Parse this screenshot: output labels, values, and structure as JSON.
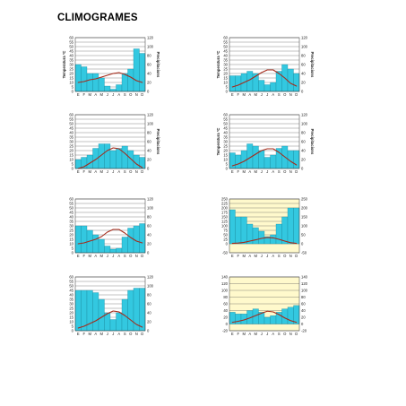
{
  "page": {
    "title": "CLIMOGRAMES"
  },
  "colors": {
    "bar_fill": "#33c8e0",
    "bar_stroke": "#1a7f93",
    "temp_line": "#a52a1a",
    "grid": "#555555",
    "panel_yellow": "#fff9cc"
  },
  "chart_data": [
    {
      "type": "bar",
      "categories": [
        "E",
        "F",
        "M",
        "A",
        "M",
        "J",
        "J",
        "A",
        "S",
        "O",
        "N",
        "D"
      ],
      "ylabel": "Temperatura ºC",
      "y2label": "Precipitacions",
      "ylim": [
        0,
        60
      ],
      "yticks": [
        "0",
        "5",
        "10",
        "15",
        "20",
        "25",
        "30",
        "35",
        "40",
        "45",
        "50",
        "55",
        "60"
      ],
      "y2lim": [
        0,
        120
      ],
      "y2ticks": [
        "0",
        "20",
        "40",
        "60",
        "80",
        "100",
        "120"
      ],
      "grid": true,
      "yellow": false,
      "series": [
        {
          "kind": "precipitation",
          "values": [
            60,
            55,
            40,
            40,
            30,
            12,
            5,
            15,
            40,
            50,
            95,
            85
          ]
        },
        {
          "kind": "temperature",
          "values": [
            10,
            11,
            13,
            14,
            16,
            18,
            20,
            21,
            19,
            16,
            12,
            10
          ]
        }
      ]
    },
    {
      "type": "bar",
      "categories": [
        "E",
        "F",
        "M",
        "A",
        "M",
        "J",
        "J",
        "A",
        "S",
        "O",
        "N",
        "D"
      ],
      "ylabel": "Temperatura ºC",
      "y2label": "Precipitacions",
      "ylim": [
        0,
        60
      ],
      "yticks": [
        "0",
        "5",
        "10",
        "15",
        "20",
        "25",
        "30",
        "35",
        "40",
        "45",
        "50",
        "55",
        "60"
      ],
      "y2lim": [
        0,
        120
      ],
      "y2ticks": [
        "0",
        "20",
        "40",
        "60",
        "80",
        "100",
        "120"
      ],
      "grid": true,
      "yellow": false,
      "series": [
        {
          "kind": "precipitation",
          "values": [
            35,
            35,
            40,
            45,
            40,
            25,
            15,
            20,
            45,
            60,
            50,
            40
          ]
        },
        {
          "kind": "temperature",
          "values": [
            5,
            7,
            10,
            13,
            17,
            21,
            24,
            24,
            20,
            15,
            9,
            6
          ]
        }
      ]
    },
    {
      "type": "bar",
      "categories": [
        "E",
        "F",
        "M",
        "A",
        "M",
        "J",
        "J",
        "A",
        "S",
        "O",
        "N",
        "D"
      ],
      "ylabel": "",
      "y2label": "Precipitacions",
      "ylim": [
        0,
        60
      ],
      "yticks": [
        "0",
        "5",
        "10",
        "15",
        "20",
        "25",
        "30",
        "35",
        "40",
        "45",
        "50",
        "55",
        "60"
      ],
      "y2lim": [
        0,
        120
      ],
      "y2ticks": [
        "0",
        "20",
        "40",
        "60",
        "80",
        "100",
        "120"
      ],
      "grid": true,
      "yellow": false,
      "series": [
        {
          "kind": "precipitation",
          "values": [
            20,
            25,
            30,
            45,
            55,
            55,
            40,
            45,
            50,
            40,
            30,
            25
          ]
        },
        {
          "kind": "temperature",
          "values": [
            0,
            2,
            6,
            10,
            15,
            20,
            23,
            22,
            17,
            11,
            5,
            1
          ]
        }
      ]
    },
    {
      "type": "bar",
      "categories": [
        "E",
        "F",
        "M",
        "A",
        "M",
        "J",
        "J",
        "A",
        "S",
        "O",
        "N",
        "D"
      ],
      "ylabel": "Temperatura ºC",
      "y2label": "Precipitacions",
      "ylim": [
        0,
        60
      ],
      "yticks": [
        "0",
        "5",
        "10",
        "15",
        "20",
        "25",
        "30",
        "35",
        "40",
        "45",
        "50",
        "55",
        "60"
      ],
      "y2lim": [
        0,
        120
      ],
      "y2ticks": [
        "0",
        "20",
        "40",
        "60",
        "80",
        "100",
        "120"
      ],
      "grid": true,
      "yellow": false,
      "series": [
        {
          "kind": "precipitation",
          "values": [
            35,
            30,
            40,
            55,
            50,
            40,
            25,
            30,
            45,
            50,
            40,
            40
          ]
        },
        {
          "kind": "temperature",
          "values": [
            3,
            5,
            8,
            12,
            16,
            20,
            22,
            22,
            18,
            13,
            8,
            4
          ]
        }
      ]
    },
    {
      "type": "bar",
      "categories": [
        "E",
        "F",
        "M",
        "A",
        "M",
        "J",
        "J",
        "A",
        "S",
        "O",
        "N",
        "D"
      ],
      "ylabel": "",
      "y2label": "",
      "ylim": [
        0,
        60
      ],
      "yticks": [
        "0",
        "5",
        "10",
        "15",
        "20",
        "25",
        "30",
        "35",
        "40",
        "45",
        "50",
        "55",
        "60"
      ],
      "y2lim": [
        0,
        120
      ],
      "y2ticks": [
        "0",
        "20",
        "40",
        "60",
        "80",
        "100",
        "120"
      ],
      "grid": true,
      "yellow": false,
      "series": [
        {
          "kind": "precipitation",
          "values": [
            60,
            60,
            50,
            40,
            30,
            15,
            8,
            10,
            35,
            55,
            60,
            65
          ]
        },
        {
          "kind": "temperature",
          "values": [
            10,
            11,
            13,
            15,
            18,
            23,
            26,
            26,
            22,
            17,
            13,
            11
          ]
        }
      ]
    },
    {
      "type": "bar",
      "categories": [
        "E",
        "F",
        "M",
        "A",
        "M",
        "J",
        "J",
        "A",
        "S",
        "O",
        "N",
        "D"
      ],
      "ylabel": "",
      "y2label": "",
      "ylim": [
        -50,
        250
      ],
      "yticks": [
        "-50",
        "0",
        "25",
        "50",
        "75",
        "100",
        "125",
        "150",
        "175",
        "200",
        "225",
        "250"
      ],
      "y2lim": [
        -50,
        250
      ],
      "y2ticks": [
        "-50",
        "0",
        "50",
        "100",
        "150",
        "200",
        "250"
      ],
      "grid": true,
      "yellow": true,
      "series": [
        {
          "kind": "precipitation",
          "values": [
            190,
            150,
            150,
            110,
            90,
            70,
            40,
            50,
            110,
            150,
            200,
            200
          ]
        },
        {
          "kind": "temperature",
          "values": [
            2,
            4,
            8,
            15,
            22,
            30,
            35,
            33,
            25,
            15,
            6,
            2
          ]
        }
      ]
    },
    {
      "type": "bar",
      "categories": [
        "E",
        "F",
        "M",
        "A",
        "M",
        "J",
        "J",
        "A",
        "S",
        "O",
        "N",
        "D"
      ],
      "ylabel": "",
      "y2label": "",
      "ylim": [
        0,
        60
      ],
      "yticks": [
        "0",
        "5",
        "10",
        "15",
        "20",
        "25",
        "30",
        "35",
        "40",
        "45",
        "50",
        "55",
        "60"
      ],
      "y2lim": [
        0,
        120
      ],
      "y2ticks": [
        "0",
        "20",
        "40",
        "60",
        "80",
        "100",
        "120"
      ],
      "grid": true,
      "yellow": false,
      "series": [
        {
          "kind": "precipitation",
          "values": [
            90,
            90,
            90,
            85,
            70,
            40,
            25,
            40,
            70,
            90,
            95,
            95
          ]
        },
        {
          "kind": "temperature",
          "values": [
            3,
            5,
            8,
            11,
            15,
            19,
            22,
            21,
            17,
            12,
            7,
            4
          ]
        }
      ]
    },
    {
      "type": "bar",
      "categories": [
        "E",
        "F",
        "M",
        "A",
        "M",
        "J",
        "J",
        "A",
        "S",
        "O",
        "N",
        "D"
      ],
      "ylabel": "",
      "y2label": "",
      "ylim": [
        -20,
        140
      ],
      "yticks": [
        "-20",
        "0",
        "20",
        "40",
        "60",
        "80",
        "100",
        "120",
        "140"
      ],
      "y2lim": [
        -20,
        140
      ],
      "y2ticks": [
        "-20",
        "0",
        "20",
        "40",
        "60",
        "80",
        "100",
        "120",
        "140"
      ],
      "grid": true,
      "yellow": true,
      "series": [
        {
          "kind": "precipitation",
          "values": [
            35,
            30,
            30,
            40,
            45,
            35,
            20,
            25,
            35,
            45,
            50,
            55
          ]
        },
        {
          "kind": "temperature",
          "values": [
            5,
            8,
            12,
            18,
            25,
            32,
            38,
            36,
            28,
            18,
            10,
            5
          ]
        }
      ]
    }
  ]
}
